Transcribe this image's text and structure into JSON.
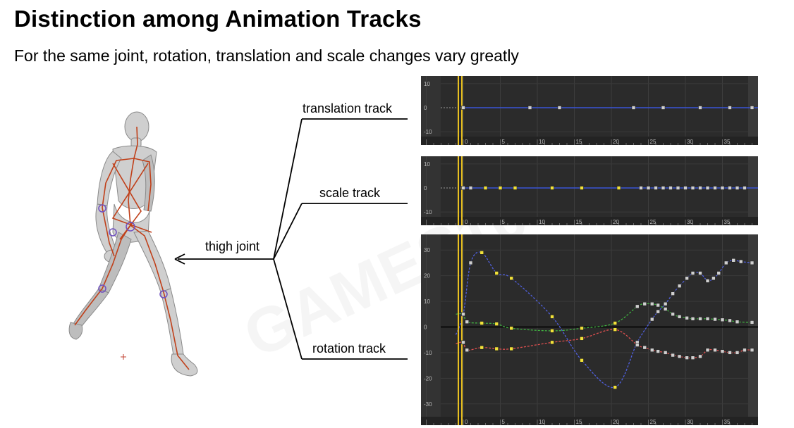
{
  "slide": {
    "title": "Distinction among Animation Tracks",
    "subtitle": "For the same joint, rotation, translation and scale changes vary greatly"
  },
  "labels": {
    "joint": "thigh joint",
    "translation": "translation track",
    "scale": "scale track",
    "rotation": "rotation track"
  },
  "watermark": "GAMES104",
  "colors": {
    "panel_bg": "#2b2b2b",
    "x_curve": "#e05050",
    "y_curve": "#40b040",
    "z_curve": "#5060e0",
    "flat_line": "#3a55d8",
    "playhead": "#e8c020",
    "key_selected": "#f2e23a",
    "key_normal": "#cfcfcf",
    "pointer": "#e07070"
  },
  "panels": [
    {
      "name": "translation",
      "y_ticks": [
        "10",
        "0",
        "-10"
      ],
      "x_ticks": [
        "0",
        "5",
        "10",
        "15",
        "20",
        "25",
        "30",
        "35"
      ],
      "keys": [
        0,
        9,
        13,
        23,
        27,
        32,
        36,
        39
      ],
      "selected_keys": []
    },
    {
      "name": "scale",
      "y_ticks": [
        "10",
        "0",
        "-10"
      ],
      "x_ticks": [
        "0",
        "5",
        "10",
        "15",
        "20",
        "25",
        "30",
        "35"
      ],
      "keys": [
        0,
        1,
        3,
        5,
        7,
        12,
        16,
        21,
        24,
        25,
        26,
        27,
        28,
        29,
        30,
        31,
        32,
        33,
        34,
        35,
        36,
        37,
        38
      ],
      "selected_keys": [
        3,
        5,
        7,
        12,
        16,
        21
      ]
    }
  ],
  "rotation": {
    "y_ticks": [
      "30",
      "20",
      "10",
      "0",
      "-10",
      "-20",
      "-30"
    ],
    "x_ticks": [
      "0",
      "5",
      "10",
      "15",
      "20",
      "25",
      "30",
      "35"
    ],
    "series": [
      {
        "name": "z",
        "points": [
          [
            -1,
            -3
          ],
          [
            0,
            5
          ],
          [
            1,
            25
          ],
          [
            2.5,
            29
          ],
          [
            4.5,
            21
          ],
          [
            6.5,
            19
          ],
          [
            12,
            4
          ],
          [
            16,
            -13
          ],
          [
            20.5,
            -23.5
          ],
          [
            23.5,
            -6
          ],
          [
            25.5,
            3
          ],
          [
            26.3,
            6
          ],
          [
            27.3,
            9
          ],
          [
            28.3,
            13
          ],
          [
            29.2,
            16
          ],
          [
            30.2,
            19
          ],
          [
            31,
            21
          ],
          [
            32,
            21
          ],
          [
            33,
            18
          ],
          [
            33.8,
            19
          ],
          [
            34.5,
            21
          ],
          [
            35.5,
            25
          ],
          [
            36.5,
            26
          ],
          [
            37.5,
            25.5
          ],
          [
            39,
            25
          ]
        ]
      },
      {
        "name": "y",
        "points": [
          [
            -1,
            5
          ],
          [
            0,
            5
          ],
          [
            0.5,
            2
          ],
          [
            2.5,
            1.5
          ],
          [
            4.5,
            1.2
          ],
          [
            6.5,
            -0.5
          ],
          [
            12,
            -1.5
          ],
          [
            16,
            -0.5
          ],
          [
            20.5,
            1.5
          ],
          [
            23.5,
            8
          ],
          [
            24.5,
            9
          ],
          [
            25.5,
            9
          ],
          [
            26.3,
            8.5
          ],
          [
            27.3,
            7
          ],
          [
            28.3,
            5
          ],
          [
            29.2,
            4
          ],
          [
            30.2,
            3.5
          ],
          [
            31,
            3.2
          ],
          [
            32,
            3.2
          ],
          [
            33,
            3.2
          ],
          [
            34,
            3
          ],
          [
            35,
            2.8
          ],
          [
            36,
            2.5
          ],
          [
            37,
            2
          ],
          [
            39,
            1.8
          ]
        ]
      },
      {
        "name": "x",
        "points": [
          [
            -1,
            -6.5
          ],
          [
            0,
            -6
          ],
          [
            0.5,
            -9
          ],
          [
            2.5,
            -8
          ],
          [
            4.5,
            -8.5
          ],
          [
            6.5,
            -8.5
          ],
          [
            12,
            -6
          ],
          [
            16,
            -4.5
          ],
          [
            20.5,
            -1
          ],
          [
            23.5,
            -7
          ],
          [
            24.5,
            -8
          ],
          [
            25.5,
            -9
          ],
          [
            26.3,
            -9.5
          ],
          [
            27.3,
            -10
          ],
          [
            28.3,
            -11
          ],
          [
            29.2,
            -11.5
          ],
          [
            30.2,
            -12
          ],
          [
            31,
            -12
          ],
          [
            32,
            -11.5
          ],
          [
            33,
            -9
          ],
          [
            34,
            -9
          ],
          [
            35,
            -9.5
          ],
          [
            36,
            -10
          ],
          [
            37,
            -10
          ],
          [
            38,
            -9
          ],
          [
            39,
            -9
          ]
        ]
      }
    ],
    "selected_indices": [
      3,
      4,
      5,
      6,
      7,
      8
    ]
  }
}
